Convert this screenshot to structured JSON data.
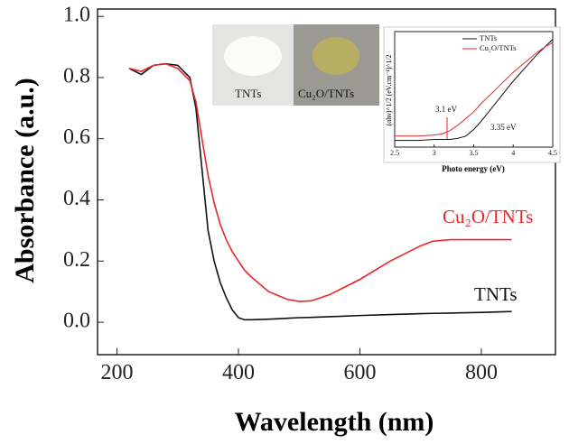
{
  "chart_data": [
    {
      "type": "line",
      "x_label": "Wavelength (nm)",
      "y_label": "Absorbance (a.u.)",
      "x": [
        220,
        240,
        260,
        280,
        300,
        320,
        330,
        340,
        350,
        360,
        370,
        380,
        390,
        400,
        410,
        420,
        450,
        480,
        500,
        520,
        550,
        600,
        650,
        700,
        720,
        750,
        800,
        850
      ],
      "series": [
        {
          "name": "TNTs",
          "color": "#111111",
          "values": [
            0.83,
            0.81,
            0.84,
            0.845,
            0.84,
            0.8,
            0.7,
            0.5,
            0.3,
            0.2,
            0.13,
            0.08,
            0.04,
            0.015,
            0.008,
            0.008,
            0.01,
            0.013,
            0.015,
            0.016,
            0.018,
            0.022,
            0.025,
            0.028,
            0.029,
            0.03,
            0.032,
            0.035
          ]
        },
        {
          "name": "Cu₂O/TNTs",
          "color": "#e8262b",
          "values": [
            0.83,
            0.82,
            0.84,
            0.845,
            0.83,
            0.79,
            0.72,
            0.6,
            0.48,
            0.39,
            0.32,
            0.27,
            0.23,
            0.2,
            0.17,
            0.15,
            0.1,
            0.075,
            0.068,
            0.07,
            0.09,
            0.14,
            0.2,
            0.25,
            0.265,
            0.27,
            0.27,
            0.27
          ]
        }
      ],
      "xlim": [
        168,
        922
      ],
      "xticks": [
        200,
        400,
        600,
        800
      ],
      "ylim": [
        -0.106,
        1.024
      ],
      "yticks": [
        {
          "value": 0,
          "label": "0.0"
        },
        {
          "value": 0.2,
          "label": "0.2"
        },
        {
          "value": 0.4,
          "label": "0.4"
        },
        {
          "value": 0.6,
          "label": "0.6"
        },
        {
          "value": 0.8,
          "label": "0.8"
        },
        {
          "value": 1,
          "label": "1.0"
        }
      ]
    },
    {
      "type": "line",
      "x_label": "Photo energy (eV)",
      "y_label": "(αhν)^1/2 (eV.cm⁻¹)^1/2",
      "x": [
        2.5,
        2.8,
        3.0,
        3.1,
        3.2,
        3.3,
        3.4,
        3.5,
        3.6,
        3.7,
        3.8,
        3.9,
        4.0,
        4.1,
        4.2,
        4.3,
        4.4,
        4.5
      ],
      "series": [
        {
          "name": "TNTs",
          "color": "#111111",
          "values": [
            0.06,
            0.06,
            0.07,
            0.07,
            0.07,
            0.08,
            0.1,
            0.16,
            0.24,
            0.33,
            0.42,
            0.51,
            0.6,
            0.68,
            0.76,
            0.84,
            0.91,
            0.98
          ]
        },
        {
          "name": "Cu₂O/TNTs",
          "color": "#e8262b",
          "values": [
            0.1,
            0.1,
            0.11,
            0.12,
            0.15,
            0.2,
            0.26,
            0.32,
            0.4,
            0.47,
            0.54,
            0.61,
            0.68,
            0.74,
            0.8,
            0.86,
            0.91,
            0.95
          ]
        }
      ],
      "annotations": [
        "3.1 eV",
        "3.35 eV"
      ],
      "xlim": [
        2.5,
        4.5
      ],
      "xticks": [
        2.5,
        3.0,
        3.5,
        4.0,
        4.5
      ],
      "ylim": [
        0,
        1.05
      ]
    }
  ],
  "inset_photos": {
    "labels": [
      "TNTs",
      "Cu₂O/TNTs"
    ]
  }
}
